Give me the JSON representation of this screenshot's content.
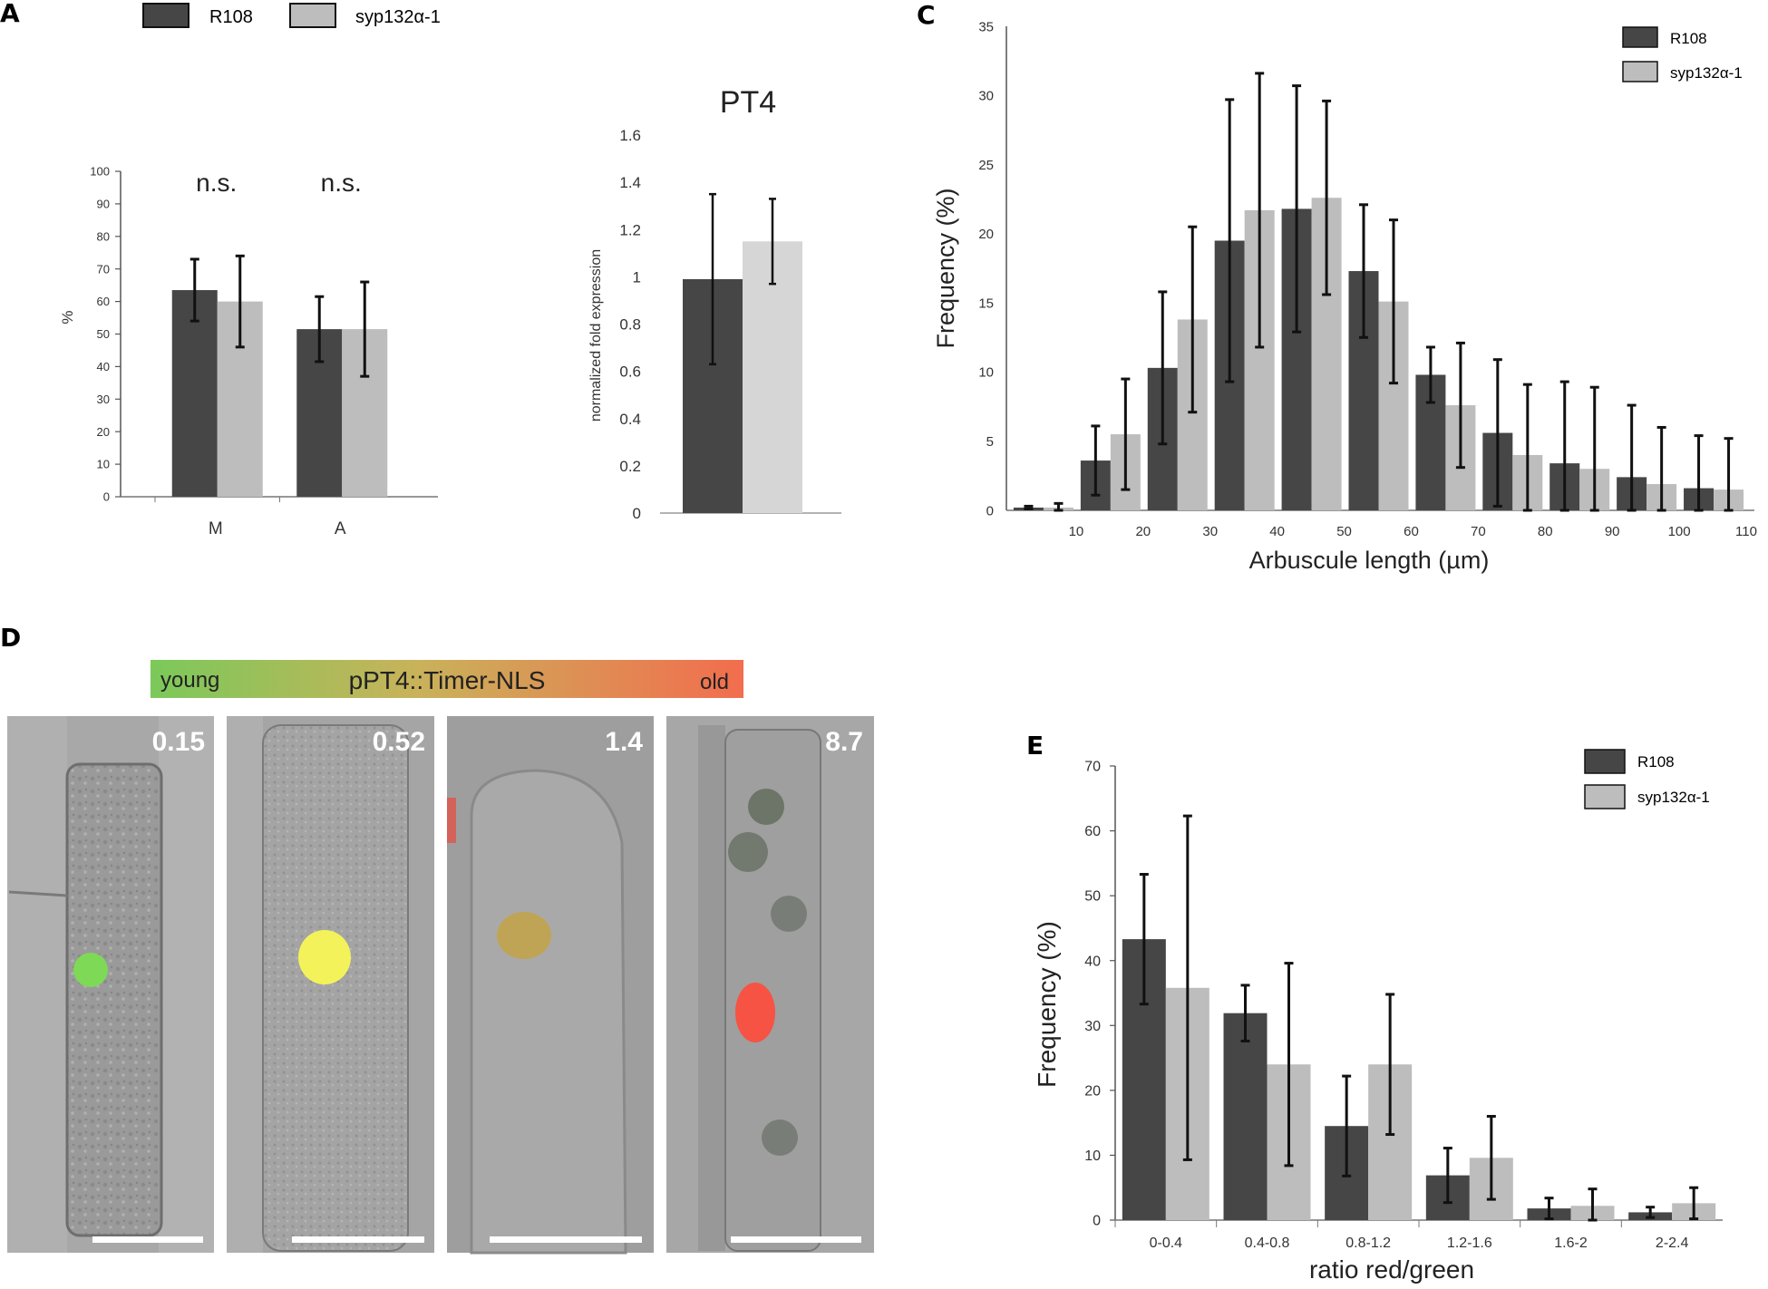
{
  "colors": {
    "r108": "#464646",
    "syp": "#bdbdbd",
    "syp_pt4": "#d6d6d6",
    "axis": "#888888",
    "err": "#111111"
  },
  "panel_labels": {
    "A": "A",
    "C": "C",
    "D": "D",
    "E": "E"
  },
  "legend": {
    "r108": "R108",
    "syp": "syp132α-1"
  },
  "panel_d": {
    "gradient_title": "pPT4::Timer-NLS",
    "young": "young",
    "old": "old",
    "images": [
      {
        "ratio": "0.15",
        "marker_color": "#7ed957"
      },
      {
        "ratio": "0.52",
        "marker_color": "#f4f25a"
      },
      {
        "ratio": "1.4",
        "marker_color": "#c8a33a"
      },
      {
        "ratio": "8.7",
        "marker_color": "#ff4a3a"
      }
    ]
  },
  "chart_data": [
    {
      "id": "A1",
      "type": "bar",
      "categories": [
        "M",
        "A"
      ],
      "series": [
        {
          "name": "R108",
          "values": [
            63.5,
            51.5
          ],
          "errors": [
            9.5,
            10.0
          ]
        },
        {
          "name": "syp132α-1",
          "values": [
            60,
            51.5
          ],
          "errors": [
            14,
            14.5
          ]
        }
      ],
      "annotations": [
        "n.s.",
        "n.s."
      ],
      "ylabel": "%",
      "ylim": [
        0,
        100
      ],
      "yticks": [
        0,
        10,
        20,
        30,
        40,
        50,
        60,
        70,
        80,
        90,
        100
      ]
    },
    {
      "id": "A2",
      "type": "bar",
      "title": "PT4",
      "categories": [
        ""
      ],
      "series": [
        {
          "name": "R108",
          "values": [
            0.99
          ],
          "errors": [
            0.36
          ]
        },
        {
          "name": "syp132α-1",
          "values": [
            1.15
          ],
          "errors": [
            0.18
          ]
        }
      ],
      "ylabel": "normalized fold expression",
      "ylim": [
        0,
        1.6
      ],
      "yticks": [
        "0",
        "0.2",
        "0.4",
        "0.6",
        "0.8",
        "1",
        "1.2",
        "1.4",
        "1.6"
      ]
    },
    {
      "id": "C",
      "type": "bar",
      "categories": [
        "0-10",
        "10-20",
        "20-30",
        "30-40",
        "40-50",
        "50-60",
        "60-70",
        "70-80",
        "80-90",
        "90-100",
        "100-110"
      ],
      "series": [
        {
          "name": "R108",
          "values": [
            0.2,
            3.6,
            10.3,
            19.5,
            21.8,
            17.3,
            9.8,
            5.6,
            3.4,
            2.4,
            1.6
          ],
          "errors": [
            0.1,
            2.5,
            5.5,
            10.2,
            8.9,
            4.8,
            2.0,
            5.3,
            5.9,
            5.2,
            3.8
          ]
        },
        {
          "name": "syp132α-1",
          "values": [
            0.2,
            5.5,
            13.8,
            21.7,
            22.6,
            15.1,
            7.6,
            4.0,
            3.0,
            1.9,
            1.5
          ],
          "errors": [
            0.3,
            4.0,
            6.7,
            9.9,
            7.0,
            5.9,
            4.5,
            5.1,
            5.9,
            4.1,
            3.7
          ]
        }
      ],
      "xticks": [
        "10",
        "20",
        "30",
        "40",
        "50",
        "60",
        "70",
        "80",
        "90",
        "100",
        "110"
      ],
      "xlabel": "Arbuscule length (µm)",
      "ylabel": "Frequency (%)",
      "ylim": [
        0,
        35
      ],
      "yticks": [
        0,
        5,
        10,
        15,
        20,
        25,
        30,
        35
      ]
    },
    {
      "id": "E",
      "type": "bar",
      "categories": [
        "0-0.4",
        "0.4-0.8",
        "0.8-1.2",
        "1.2-1.6",
        "1.6-2",
        "2-2.4"
      ],
      "series": [
        {
          "name": "R108",
          "values": [
            43.3,
            31.9,
            14.5,
            6.9,
            1.8,
            1.2
          ],
          "errors": [
            10,
            4.3,
            7.7,
            4.2,
            1.6,
            0.8
          ]
        },
        {
          "name": "syp132α-1",
          "values": [
            35.8,
            24.0,
            24.0,
            9.6,
            2.2,
            2.6
          ],
          "errors": [
            26.5,
            15.6,
            10.8,
            6.4,
            2.6,
            2.4
          ]
        }
      ],
      "xlabel": "ratio red/green",
      "ylabel": "Frequency (%)",
      "ylim": [
        0,
        70
      ],
      "yticks": [
        0,
        10,
        20,
        30,
        40,
        50,
        60,
        70
      ]
    }
  ]
}
